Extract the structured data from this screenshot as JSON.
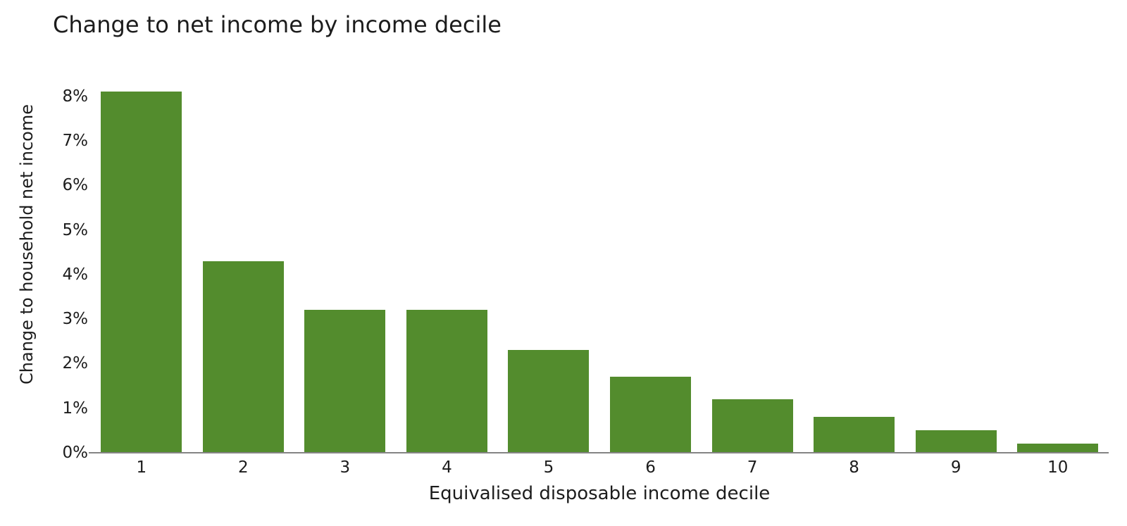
{
  "chart_data": {
    "type": "bar",
    "title": "Change to net income by income decile",
    "xlabel": "Equivalised disposable income decile",
    "ylabel": "Change to household net income",
    "categories": [
      "1",
      "2",
      "3",
      "4",
      "5",
      "6",
      "7",
      "8",
      "9",
      "10"
    ],
    "values": [
      8.1,
      4.3,
      3.2,
      3.2,
      2.3,
      1.7,
      1.2,
      0.8,
      0.5,
      0.2
    ],
    "values_unit": "%",
    "y_tick_labels": [
      "0%",
      "1%",
      "2%",
      "3%",
      "4%",
      "5%",
      "6%",
      "7%",
      "8%"
    ],
    "ylim": [
      0,
      8.2
    ],
    "grid": false,
    "legend": "none",
    "bar_color": "#538c2d",
    "axis_line_color": "#848484",
    "text_color": "#1c1c1c",
    "background_color": "#ffffff"
  }
}
